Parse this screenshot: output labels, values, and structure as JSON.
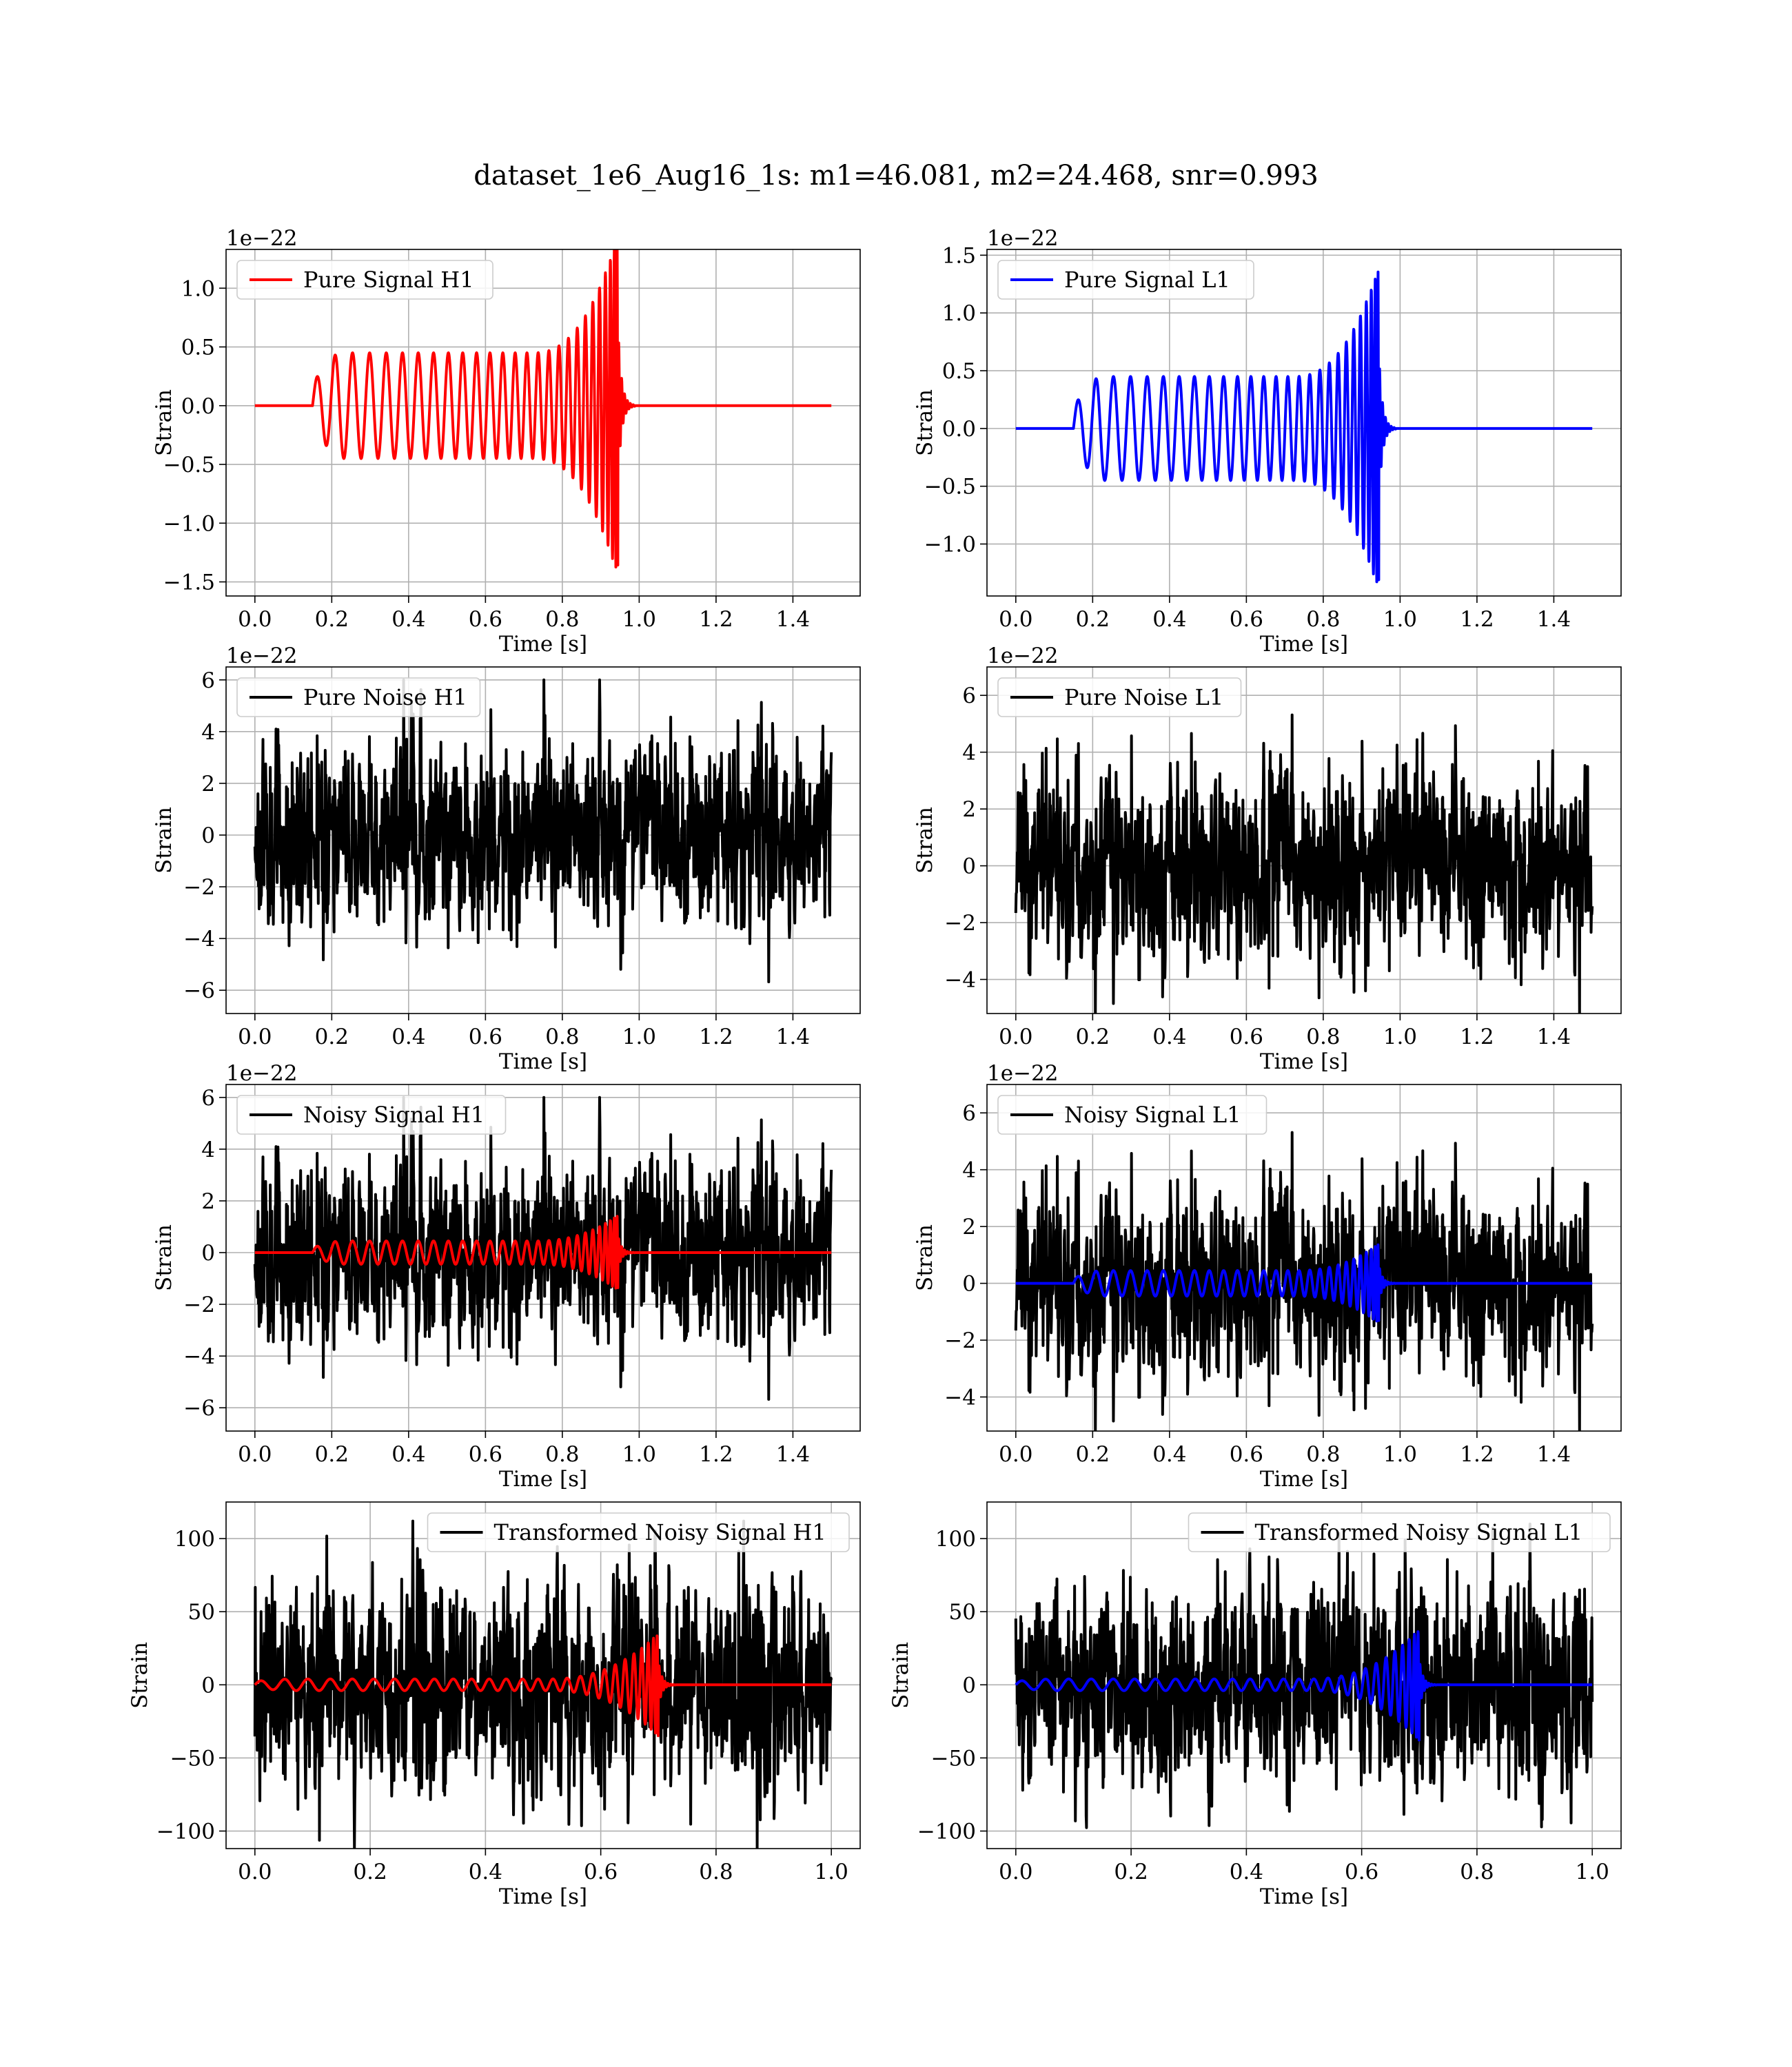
{
  "chart_data": {
    "title": "dataset_1e6_Aug16_1s: m1=46.081, m2=24.468, snr=0.993",
    "panels": [
      {
        "id": "pure-signal-h1",
        "type": "line",
        "xlabel": "Time [s]",
        "ylabel": "Strain",
        "offset_text": "1e−22",
        "xlim": [
          -0.075,
          1.575
        ],
        "ylim": [
          -1.62,
          1.33
        ],
        "xticks": [
          0.0,
          0.2,
          0.4,
          0.6,
          0.8,
          1.0,
          1.2,
          1.4
        ],
        "xtick_labels": [
          "0.0",
          "0.2",
          "0.4",
          "0.6",
          "0.8",
          "1.0",
          "1.2",
          "1.4"
        ],
        "yticks": [
          -1.5,
          -1.0,
          -0.5,
          0.0,
          0.5,
          1.0
        ],
        "ytick_labels": [
          "−1.5",
          "−1.0",
          "−0.5",
          "0.0",
          "0.5",
          "1.0"
        ],
        "grid": true,
        "legend_loc": "upper left",
        "series": [
          {
            "name": "Pure Signal H1",
            "color": "#ff0000",
            "kind": "chirp",
            "x_range": [
              0,
              1.5
            ],
            "t_start": 0.15,
            "t_merge": 0.945,
            "amp_start": 0.2,
            "amp_mid": 0.45,
            "amp_peak": 1.45,
            "cycles": 27
          }
        ]
      },
      {
        "id": "pure-signal-l1",
        "type": "line",
        "xlabel": "Time [s]",
        "ylabel": "Strain",
        "offset_text": "1e−22",
        "xlim": [
          -0.075,
          1.575
        ],
        "ylim": [
          -1.45,
          1.55
        ],
        "xticks": [
          0.0,
          0.2,
          0.4,
          0.6,
          0.8,
          1.0,
          1.2,
          1.4
        ],
        "xtick_labels": [
          "0.0",
          "0.2",
          "0.4",
          "0.6",
          "0.8",
          "1.0",
          "1.2",
          "1.4"
        ],
        "yticks": [
          -1.0,
          -0.5,
          0.0,
          0.5,
          1.0,
          1.5
        ],
        "ytick_labels": [
          "−1.0",
          "−0.5",
          "0.0",
          "0.5",
          "1.0",
          "1.5"
        ],
        "grid": true,
        "legend_loc": "upper left",
        "series": [
          {
            "name": "Pure Signal L1",
            "color": "#0000ff",
            "kind": "chirp",
            "x_range": [
              0,
              1.5
            ],
            "t_start": 0.15,
            "t_merge": 0.945,
            "amp_start": 0.2,
            "amp_mid": 0.45,
            "amp_peak": 1.4,
            "cycles": 27
          }
        ]
      },
      {
        "id": "pure-noise-h1",
        "type": "line",
        "xlabel": "Time [s]",
        "ylabel": "Strain",
        "offset_text": "1e−22",
        "xlim": [
          -0.075,
          1.575
        ],
        "ylim": [
          -6.9,
          6.5
        ],
        "xticks": [
          0.0,
          0.2,
          0.4,
          0.6,
          0.8,
          1.0,
          1.2,
          1.4
        ],
        "xtick_labels": [
          "0.0",
          "0.2",
          "0.4",
          "0.6",
          "0.8",
          "1.0",
          "1.2",
          "1.4"
        ],
        "yticks": [
          -6,
          -4,
          -2,
          0,
          2,
          4,
          6
        ],
        "ytick_labels": [
          "−6",
          "−4",
          "−2",
          "0",
          "2",
          "4",
          "6"
        ],
        "grid": true,
        "legend_loc": "upper left",
        "series": [
          {
            "name": "Pure Noise H1",
            "color": "#000000",
            "kind": "noise",
            "x_range": [
              0,
              1.5
            ],
            "sigma": 1.6,
            "peak": 6.0,
            "seed": 11
          }
        ]
      },
      {
        "id": "pure-noise-l1",
        "type": "line",
        "xlabel": "Time [s]",
        "ylabel": "Strain",
        "offset_text": "1e−22",
        "xlim": [
          -0.075,
          1.575
        ],
        "ylim": [
          -5.2,
          7.0
        ],
        "xticks": [
          0.0,
          0.2,
          0.4,
          0.6,
          0.8,
          1.0,
          1.2,
          1.4
        ],
        "xtick_labels": [
          "0.0",
          "0.2",
          "0.4",
          "0.6",
          "0.8",
          "1.0",
          "1.2",
          "1.4"
        ],
        "yticks": [
          -4,
          -2,
          0,
          2,
          4,
          6
        ],
        "ytick_labels": [
          "−4",
          "−2",
          "0",
          "2",
          "4",
          "6"
        ],
        "grid": true,
        "legend_loc": "upper left",
        "series": [
          {
            "name": "Pure Noise L1",
            "color": "#000000",
            "kind": "noise",
            "x_range": [
              0,
              1.5
            ],
            "sigma": 1.5,
            "peak": 6.5,
            "seed": 23
          }
        ]
      },
      {
        "id": "noisy-signal-h1",
        "type": "line",
        "xlabel": "Time [s]",
        "ylabel": "Strain",
        "offset_text": "1e−22",
        "xlim": [
          -0.075,
          1.575
        ],
        "ylim": [
          -6.9,
          6.5
        ],
        "xticks": [
          0.0,
          0.2,
          0.4,
          0.6,
          0.8,
          1.0,
          1.2,
          1.4
        ],
        "xtick_labels": [
          "0.0",
          "0.2",
          "0.4",
          "0.6",
          "0.8",
          "1.0",
          "1.2",
          "1.4"
        ],
        "yticks": [
          -6,
          -4,
          -2,
          0,
          2,
          4,
          6
        ],
        "ytick_labels": [
          "−6",
          "−4",
          "−2",
          "0",
          "2",
          "4",
          "6"
        ],
        "grid": true,
        "legend_loc": "upper left",
        "series": [
          {
            "name": "Noisy Signal H1",
            "color": "#000000",
            "kind": "noise",
            "x_range": [
              0,
              1.5
            ],
            "sigma": 1.6,
            "peak": 6.0,
            "seed": 11
          },
          {
            "name": "",
            "color": "#ff0000",
            "kind": "chirp",
            "x_range": [
              0,
              1.5
            ],
            "t_start": 0.15,
            "t_merge": 0.945,
            "amp_start": 0.2,
            "amp_mid": 0.45,
            "amp_peak": 1.45,
            "cycles": 27
          }
        ]
      },
      {
        "id": "noisy-signal-l1",
        "type": "line",
        "xlabel": "Time [s]",
        "ylabel": "Strain",
        "offset_text": "1e−22",
        "xlim": [
          -0.075,
          1.575
        ],
        "ylim": [
          -5.2,
          7.0
        ],
        "xticks": [
          0.0,
          0.2,
          0.4,
          0.6,
          0.8,
          1.0,
          1.2,
          1.4
        ],
        "xtick_labels": [
          "0.0",
          "0.2",
          "0.4",
          "0.6",
          "0.8",
          "1.0",
          "1.2",
          "1.4"
        ],
        "yticks": [
          -4,
          -2,
          0,
          2,
          4,
          6
        ],
        "ytick_labels": [
          "−4",
          "−2",
          "0",
          "2",
          "4",
          "6"
        ],
        "grid": true,
        "legend_loc": "upper left",
        "series": [
          {
            "name": "Noisy Signal L1",
            "color": "#000000",
            "kind": "noise",
            "x_range": [
              0,
              1.5
            ],
            "sigma": 1.5,
            "peak": 6.5,
            "seed": 23
          },
          {
            "name": "",
            "color": "#0000ff",
            "kind": "chirp",
            "x_range": [
              0,
              1.5
            ],
            "t_start": 0.15,
            "t_merge": 0.945,
            "amp_start": 0.2,
            "amp_mid": 0.45,
            "amp_peak": 1.4,
            "cycles": 27
          }
        ]
      },
      {
        "id": "transformed-noisy-signal-h1",
        "type": "line",
        "xlabel": "Time [s]",
        "ylabel": "Strain",
        "offset_text": "",
        "xlim": [
          -0.05,
          1.05
        ],
        "ylim": [
          -112,
          125
        ],
        "xticks": [
          0.0,
          0.2,
          0.4,
          0.6,
          0.8,
          1.0
        ],
        "xtick_labels": [
          "0.0",
          "0.2",
          "0.4",
          "0.6",
          "0.8",
          "1.0"
        ],
        "yticks": [
          -100,
          -50,
          0,
          50,
          100
        ],
        "ytick_labels": [
          "−100",
          "−50",
          "0",
          "50",
          "100"
        ],
        "grid": true,
        "legend_loc": "upper right",
        "series": [
          {
            "name": "Transformed Noisy Signal H1",
            "color": "#000000",
            "kind": "noise",
            "x_range": [
              0,
              1.0
            ],
            "sigma": 32,
            "peak": 112,
            "seed": 37
          },
          {
            "name": "",
            "color": "#ff0000",
            "kind": "chirp",
            "x_range": [
              0,
              1.0
            ],
            "t_start": 0.0,
            "t_merge": 0.7,
            "amp_start": 2.5,
            "amp_mid": 4,
            "amp_peak": 35,
            "cycles": 27
          }
        ]
      },
      {
        "id": "transformed-noisy-signal-l1",
        "type": "line",
        "xlabel": "Time [s]",
        "ylabel": "Strain",
        "offset_text": "",
        "xlim": [
          -0.05,
          1.05
        ],
        "ylim": [
          -112,
          125
        ],
        "xticks": [
          0.0,
          0.2,
          0.4,
          0.6,
          0.8,
          1.0
        ],
        "xtick_labels": [
          "0.0",
          "0.2",
          "0.4",
          "0.6",
          "0.8",
          "1.0"
        ],
        "yticks": [
          -100,
          -50,
          0,
          50,
          100
        ],
        "ytick_labels": [
          "−100",
          "−50",
          "0",
          "50",
          "100"
        ],
        "grid": true,
        "legend_loc": "upper right",
        "series": [
          {
            "name": "Transformed Noisy Signal L1",
            "color": "#000000",
            "kind": "noise",
            "x_range": [
              0,
              1.0
            ],
            "sigma": 32,
            "peak": 110,
            "seed": 53
          },
          {
            "name": "",
            "color": "#0000ff",
            "kind": "chirp",
            "x_range": [
              0,
              1.0
            ],
            "t_start": 0.0,
            "t_merge": 0.7,
            "amp_start": 2.5,
            "amp_mid": 4,
            "amp_peak": 38,
            "cycles": 27
          }
        ]
      }
    ]
  }
}
